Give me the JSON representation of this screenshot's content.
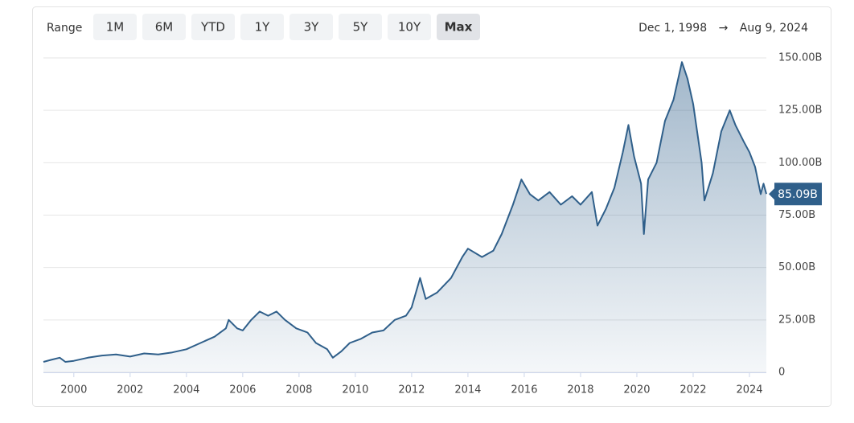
{
  "chart_data": {
    "type": "area",
    "range_label": "Range",
    "range_buttons": [
      "1M",
      "6M",
      "YTD",
      "1Y",
      "3Y",
      "5Y",
      "10Y",
      "Max"
    ],
    "selected_range": 7,
    "start_date": "Dec 1, 1998",
    "arrow": "→",
    "end_date": "Aug 9, 2024",
    "x": [
      1998.92,
      1999.2,
      1999.5,
      1999.7,
      2000,
      2000.5,
      2001,
      2001.5,
      2002,
      2002.5,
      2003,
      2003.5,
      2004,
      2004.5,
      2005,
      2005.4,
      2005.5,
      2005.8,
      2006,
      2006.3,
      2006.6,
      2006.9,
      2007.2,
      2007.5,
      2007.9,
      2008.3,
      2008.6,
      2009,
      2009.2,
      2009.5,
      2009.8,
      2010.2,
      2010.6,
      2011,
      2011.4,
      2011.8,
      2012,
      2012.3,
      2012.5,
      2012.9,
      2013.4,
      2013.8,
      2014,
      2014.5,
      2014.9,
      2015.2,
      2015.6,
      2015.9,
      2016.2,
      2016.5,
      2016.9,
      2017.3,
      2017.7,
      2018,
      2018.4,
      2018.6,
      2018.9,
      2019.2,
      2019.5,
      2019.7,
      2019.9,
      2020.15,
      2020.25,
      2020.4,
      2020.7,
      2021,
      2021.3,
      2021.6,
      2021.8,
      2022,
      2022.3,
      2022.4,
      2022.7,
      2023,
      2023.3,
      2023.5,
      2023.8,
      2024,
      2024.2,
      2024.4,
      2024.5,
      2024.6
    ],
    "series": [
      {
        "color": "#2f5f8a",
        "values": [
          5,
          6,
          7,
          5,
          5.5,
          7,
          8,
          8.5,
          7.5,
          9,
          8.5,
          9.5,
          11,
          14,
          17,
          21,
          25,
          21,
          20,
          25,
          29,
          27,
          29,
          25,
          21,
          19,
          14,
          11,
          7,
          10,
          14,
          16,
          19,
          20,
          25,
          27,
          31,
          45,
          35,
          38,
          45,
          55,
          59,
          55,
          58,
          66,
          80,
          92,
          85,
          82,
          86,
          80,
          84,
          80,
          86,
          70,
          78,
          88,
          105,
          118,
          103,
          90,
          66,
          92,
          100,
          120,
          130,
          148,
          140,
          128,
          100,
          82,
          95,
          115,
          125,
          118,
          110,
          105,
          98,
          85,
          90,
          85.09
        ]
      }
    ],
    "current": {
      "value": 85.09,
      "label": "85.09B"
    },
    "xlim": [
      1998.92,
      2024.6
    ],
    "xticks": [
      2000,
      2002,
      2004,
      2006,
      2008,
      2010,
      2012,
      2014,
      2016,
      2018,
      2020,
      2022,
      2024
    ],
    "ylim": [
      0,
      150
    ],
    "yticks": [
      0,
      {
        "value": 25,
        "label": "25.00B"
      },
      {
        "value": 50,
        "label": "50.00B"
      },
      {
        "value": 75,
        "label": "75.00B"
      },
      {
        "value": 100,
        "label": "100.00B"
      },
      {
        "value": 125,
        "label": "125.00B"
      },
      {
        "value": 150,
        "label": "150.00B"
      }
    ],
    "grid": true
  }
}
